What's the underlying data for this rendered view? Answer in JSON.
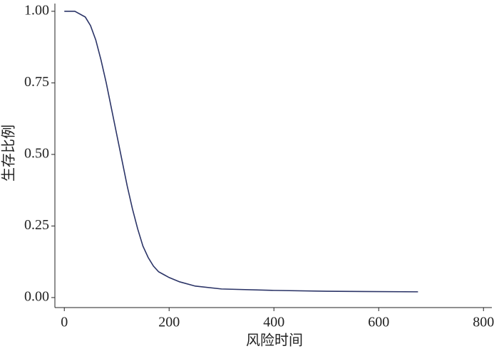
{
  "chart_data": {
    "type": "line",
    "xlabel": "风险时间",
    "ylabel": "生存比例",
    "x": [
      0,
      20,
      40,
      50,
      60,
      70,
      80,
      90,
      100,
      110,
      120,
      130,
      140,
      150,
      160,
      170,
      180,
      190,
      200,
      220,
      250,
      300,
      400,
      500,
      675
    ],
    "series": [
      {
        "color": "#2b3467",
        "values": [
          1.0,
          1.0,
          0.98,
          0.95,
          0.9,
          0.83,
          0.75,
          0.66,
          0.57,
          0.48,
          0.39,
          0.31,
          0.24,
          0.18,
          0.14,
          0.11,
          0.09,
          0.08,
          0.07,
          0.055,
          0.04,
          0.03,
          0.025,
          0.022,
          0.02
        ]
      }
    ],
    "xlim": [
      -18,
      816
    ],
    "ylim": [
      -0.035,
      1.027
    ],
    "xticks": [
      0,
      200,
      400,
      600,
      800
    ],
    "yticks": [
      {
        "value": 0,
        "label": "0.00"
      },
      {
        "value": 0.25,
        "label": "0.25"
      },
      {
        "value": 0.5,
        "label": "0.50"
      },
      {
        "value": 0.75,
        "label": "0.75"
      },
      {
        "value": 1,
        "label": "1.00"
      }
    ]
  }
}
